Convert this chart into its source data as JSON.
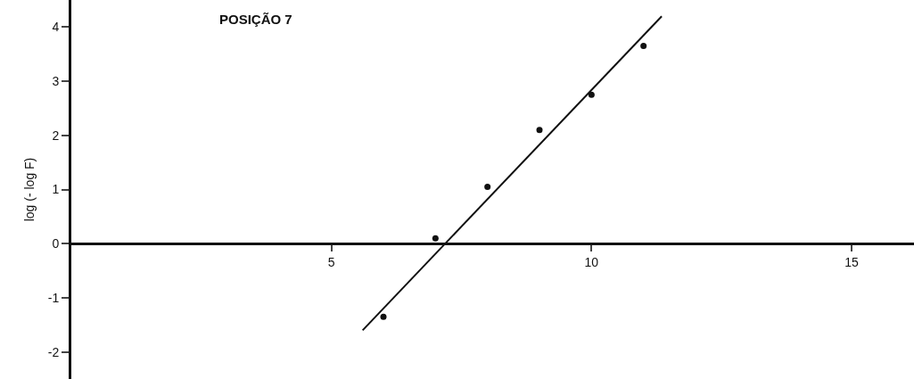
{
  "chart_data": {
    "type": "scatter",
    "title": "POSIÇÃO 7",
    "ylabel": "log (- log F)",
    "x": [
      6,
      7,
      8,
      9,
      10,
      11
    ],
    "series": [
      {
        "color": "#111111",
        "marker": "circle",
        "values": [
          -1.35,
          0.1,
          1.05,
          2.1,
          2.75,
          3.65
        ]
      },
      {
        "type": "line",
        "color": "#111111",
        "marker": "none",
        "line_style": "solid",
        "x": [
          5.6,
          11.35
        ],
        "values": [
          -1.6,
          4.2
        ]
      }
    ],
    "xlim": [
      0,
      16.2
    ],
    "xticks": [
      5,
      10,
      15
    ],
    "ylim": [
      -2.5,
      4.5
    ],
    "yticks": [
      -2,
      -1,
      0,
      1,
      2,
      3,
      4
    ],
    "grid": false,
    "legend": false
  }
}
